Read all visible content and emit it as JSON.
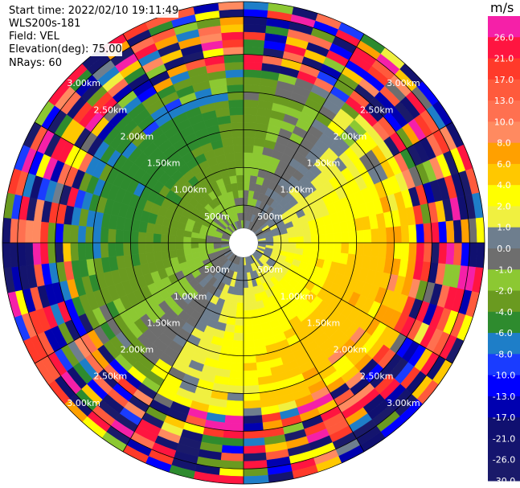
{
  "header": {
    "start_time": "Start time: 2022/02/10 19:11:49",
    "instrument": "WLS200s-181",
    "field": "Field: VEL",
    "elevation": "Elevation(deg): 75.00",
    "nrays": "NRays: 60"
  },
  "chart_data": {
    "type": "heatmap",
    "projection": "polar-ppi",
    "ring_labels": [
      "500m",
      "1.00km",
      "1.50km",
      "2.00km",
      "2.50km",
      "3.00km"
    ],
    "ring_ranges_m": [
      500,
      1000,
      1500,
      2000,
      2500,
      3000
    ],
    "max_range_m": 3200,
    "nrays": 60,
    "colorbar": {
      "unit": "m/s",
      "boundaries": [
        30.0,
        26.0,
        21.0,
        17.0,
        13.0,
        10.0,
        8.0,
        6.0,
        4.0,
        2.0,
        1.0,
        0.0,
        -1.0,
        -2.0,
        -4.0,
        -6.0,
        -8.0,
        -10.0,
        -13.0,
        -17.0,
        -21.0,
        -26.0,
        -30.0
      ],
      "tick_labels": [
        "26.0",
        "21.0",
        "17.0",
        "13.0",
        "10.0",
        "8.0",
        "6.0",
        "4.0",
        "2.0",
        "1.0",
        "0.0",
        "-1.0",
        "-2.0",
        "-4.0",
        "-6.0",
        "-8.0",
        "-10.0",
        "-13.0",
        "-17.0",
        "-21.0",
        "-26.0",
        "-30.0"
      ],
      "colors": [
        "#f520a8",
        "#ff1540",
        "#ff3a2a",
        "#ff5a3c",
        "#ff7050",
        "#ff8a60",
        "#ffa000",
        "#ffc800",
        "#ffff00",
        "#f0f040",
        "#6e7e8e",
        "#6e6e6e",
        "#8cc832",
        "#6a9a20",
        "#2e8b2e",
        "#1e7ec8",
        "#1a3cff",
        "#0000ff",
        "#0000b0",
        "#101070",
        "#14146e",
        "#1a1a6a"
      ]
    },
    "field_pattern": {
      "description_levels": "velocity bins vs range; inner region ~0 m/s, positive (yellow) toward lower-right, negative (green) toward upper-left, noisy beyond 2.3 km"
    }
  }
}
